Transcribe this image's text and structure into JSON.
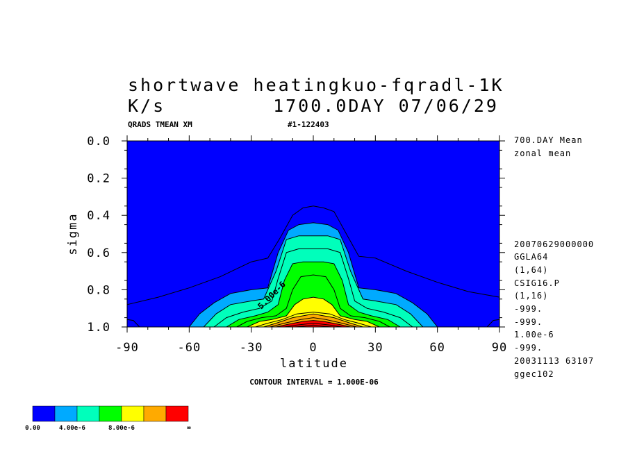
{
  "chart_data": {
    "type": "contour",
    "title_line1": "shortwave heatingkuo-fqradl-1K",
    "title_line2_left": "K/s",
    "title_line2_right": "1700.0DAY 07/06/29",
    "subtitle_left": "QRADS TMEAN XM",
    "subtitle_right": "#1-122403",
    "xlabel": "latitude",
    "ylabel": "sigma",
    "x_ticks": [
      "-90",
      "-60",
      "-30",
      "0",
      "30",
      "60",
      "90"
    ],
    "y_ticks": [
      "0.0",
      "0.2",
      "0.4",
      "0.6",
      "0.8",
      "1.0"
    ],
    "xlim": [
      -90,
      90
    ],
    "ylim": [
      0.0,
      1.0
    ],
    "y_inverted": true,
    "contour_interval_text": "CONTOUR INTERVAL = 1.000E-06",
    "contour_label": "5.00e-6",
    "side_labels": [
      "700.DAY Mean",
      "zonal mean",
      "20070629000000",
      "GGLA64",
      "(1,64)",
      "CSIG16.P",
      "(1,16)",
      "-999.",
      "-999.",
      "1.00e-6",
      "-999.",
      "20031113  63107",
      "ggec102"
    ],
    "colorbar": {
      "colors": [
        "#0000ff",
        "#00aaff",
        "#00ffbb",
        "#00ff00",
        "#ffff00",
        "#ffaa00",
        "#ff0000"
      ],
      "labels": [
        "0.00",
        "4.00e-6",
        "8.00e-6",
        "∞"
      ]
    },
    "contour_levels": [
      0,
      1e-06,
      2e-06,
      3e-06,
      4e-06,
      5e-06,
      6e-06,
      7e-06,
      8e-06,
      9e-06,
      1e-05,
      1.1e-05,
      1.2e-05
    ],
    "contours": [
      {
        "level": 0,
        "points": [
          [
            -90,
            0.88
          ],
          [
            -75,
            0.84
          ],
          [
            -60,
            0.79
          ],
          [
            -45,
            0.73
          ],
          [
            -30,
            0.65
          ],
          [
            -22,
            0.63
          ],
          [
            -16,
            0.52
          ],
          [
            -10,
            0.4
          ],
          [
            -5,
            0.36
          ],
          [
            0,
            0.35
          ],
          [
            5,
            0.36
          ],
          [
            10,
            0.38
          ],
          [
            16,
            0.5
          ],
          [
            22,
            0.62
          ],
          [
            30,
            0.63
          ],
          [
            45,
            0.7
          ],
          [
            60,
            0.76
          ],
          [
            75,
            0.81
          ],
          [
            90,
            0.84
          ]
        ]
      },
      {
        "level": 1e-06,
        "points": [
          [
            -60,
            1.0
          ],
          [
            -55,
            0.93
          ],
          [
            -48,
            0.87
          ],
          [
            -40,
            0.82
          ],
          [
            -30,
            0.8
          ],
          [
            -22,
            0.79
          ],
          [
            -17,
            0.6
          ],
          [
            -12,
            0.48
          ],
          [
            -7,
            0.45
          ],
          [
            0,
            0.44
          ],
          [
            7,
            0.45
          ],
          [
            12,
            0.48
          ],
          [
            17,
            0.6
          ],
          [
            22,
            0.79
          ],
          [
            30,
            0.8
          ],
          [
            40,
            0.82
          ],
          [
            48,
            0.87
          ],
          [
            55,
            0.93
          ],
          [
            60,
            1.0
          ]
        ]
      },
      {
        "level": 2e-06,
        "points": [
          [
            -53,
            1.0
          ],
          [
            -47,
            0.93
          ],
          [
            -40,
            0.88
          ],
          [
            -30,
            0.86
          ],
          [
            -24,
            0.85
          ],
          [
            -18,
            0.7
          ],
          [
            -13,
            0.53
          ],
          [
            -7,
            0.51
          ],
          [
            0,
            0.51
          ],
          [
            7,
            0.51
          ],
          [
            13,
            0.53
          ],
          [
            18,
            0.7
          ],
          [
            24,
            0.85
          ],
          [
            30,
            0.86
          ],
          [
            40,
            0.88
          ],
          [
            47,
            0.93
          ],
          [
            53,
            1.0
          ]
        ]
      },
      {
        "level": 3e-06,
        "points": [
          [
            -48,
            1.0
          ],
          [
            -42,
            0.95
          ],
          [
            -34,
            0.92
          ],
          [
            -26,
            0.9
          ],
          [
            -20,
            0.86
          ],
          [
            -17,
            0.74
          ],
          [
            -13,
            0.6
          ],
          [
            -7,
            0.58
          ],
          [
            0,
            0.58
          ],
          [
            7,
            0.58
          ],
          [
            13,
            0.6
          ],
          [
            17,
            0.74
          ],
          [
            20,
            0.86
          ],
          [
            26,
            0.9
          ],
          [
            34,
            0.92
          ],
          [
            42,
            0.95
          ],
          [
            48,
            1.0
          ]
        ]
      },
      {
        "level": 4e-06,
        "points": [
          [
            -42,
            1.0
          ],
          [
            -36,
            0.96
          ],
          [
            -28,
            0.94
          ],
          [
            -22,
            0.92
          ],
          [
            -17,
            0.88
          ],
          [
            -14,
            0.75
          ],
          [
            -10,
            0.66
          ],
          [
            -5,
            0.65
          ],
          [
            0,
            0.65
          ],
          [
            5,
            0.65
          ],
          [
            10,
            0.66
          ],
          [
            14,
            0.75
          ],
          [
            17,
            0.88
          ],
          [
            22,
            0.92
          ],
          [
            28,
            0.94
          ],
          [
            36,
            0.96
          ],
          [
            42,
            1.0
          ]
        ]
      },
      {
        "level": 5e-06,
        "points": [
          [
            -37,
            1.0
          ],
          [
            -32,
            0.97
          ],
          [
            -25,
            0.95
          ],
          [
            -18,
            0.94
          ],
          [
            -13,
            0.9
          ],
          [
            -10,
            0.8
          ],
          [
            -6,
            0.73
          ],
          [
            0,
            0.72
          ],
          [
            6,
            0.73
          ],
          [
            10,
            0.8
          ],
          [
            13,
            0.9
          ],
          [
            18,
            0.94
          ],
          [
            25,
            0.95
          ],
          [
            32,
            0.97
          ],
          [
            37,
            1.0
          ]
        ]
      },
      {
        "level": 6e-06,
        "points": [
          [
            -32,
            1.0
          ],
          [
            -26,
            0.97
          ],
          [
            -20,
            0.96
          ],
          [
            -13,
            0.94
          ],
          [
            -9,
            0.88
          ],
          [
            -5,
            0.85
          ],
          [
            0,
            0.84
          ],
          [
            5,
            0.85
          ],
          [
            9,
            0.88
          ],
          [
            13,
            0.94
          ],
          [
            20,
            0.96
          ],
          [
            26,
            0.97
          ],
          [
            32,
            1.0
          ]
        ]
      },
      {
        "level": 7e-06,
        "points": [
          [
            -28,
            1.0
          ],
          [
            -22,
            0.98
          ],
          [
            -15,
            0.96
          ],
          [
            -8,
            0.93
          ],
          [
            0,
            0.92
          ],
          [
            8,
            0.93
          ],
          [
            15,
            0.96
          ],
          [
            22,
            0.98
          ],
          [
            28,
            1.0
          ]
        ]
      },
      {
        "level": 8e-06,
        "points": [
          [
            -24,
            1.0
          ],
          [
            -18,
            0.98
          ],
          [
            -10,
            0.95
          ],
          [
            0,
            0.93
          ],
          [
            10,
            0.95
          ],
          [
            18,
            0.98
          ],
          [
            24,
            1.0
          ]
        ]
      },
      {
        "level": 9e-06,
        "points": [
          [
            -21,
            1.0
          ],
          [
            -14,
            0.98
          ],
          [
            -6,
            0.96
          ],
          [
            0,
            0.95
          ],
          [
            6,
            0.96
          ],
          [
            14,
            0.98
          ],
          [
            21,
            1.0
          ]
        ]
      },
      {
        "level": 1e-05,
        "points": [
          [
            -18,
            1.0
          ],
          [
            -12,
            0.985
          ],
          [
            -5,
            0.97
          ],
          [
            0,
            0.965
          ],
          [
            5,
            0.97
          ],
          [
            12,
            0.985
          ],
          [
            18,
            1.0
          ]
        ]
      },
      {
        "level": 1.1e-05,
        "points": [
          [
            -14,
            1.0
          ],
          [
            -8,
            0.99
          ],
          [
            0,
            0.98
          ],
          [
            8,
            0.99
          ],
          [
            14,
            1.0
          ]
        ]
      },
      {
        "level": 1.2e-05,
        "points": [
          [
            -9,
            1.0
          ],
          [
            -4,
            0.995
          ],
          [
            0,
            0.99
          ],
          [
            4,
            0.995
          ],
          [
            9,
            1.0
          ]
        ]
      }
    ],
    "edge_contours": [
      {
        "level": 0,
        "points": [
          [
            -90,
            0.96
          ],
          [
            -87,
            0.965
          ],
          [
            -84,
            1.0
          ]
        ]
      },
      {
        "level": 0,
        "points": [
          [
            84,
            1.0
          ],
          [
            87,
            0.965
          ],
          [
            90,
            0.96
          ]
        ]
      }
    ]
  }
}
